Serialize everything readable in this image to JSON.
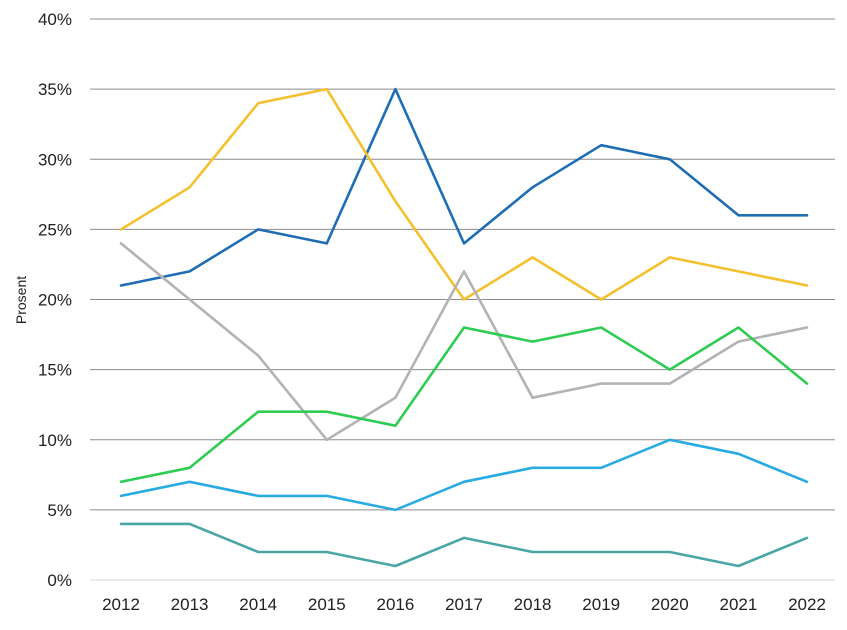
{
  "chart_data": {
    "type": "line",
    "title": "",
    "xlabel": "",
    "ylabel": "Prosent",
    "x": [
      "2012",
      "2013",
      "2014",
      "2015",
      "2016",
      "2017",
      "2018",
      "2019",
      "2020",
      "2021",
      "2022"
    ],
    "ylim": [
      0,
      40
    ],
    "yticks": [
      0,
      5,
      10,
      15,
      20,
      25,
      30,
      35,
      40
    ],
    "ytick_labels": [
      "0%",
      "5%",
      "10%",
      "15%",
      "20%",
      "25%",
      "30%",
      "35%",
      "40%"
    ],
    "grid": true,
    "legend": "none",
    "series": [
      {
        "color": "#1f6db3",
        "values": [
          21,
          22,
          25,
          24,
          35,
          24,
          28,
          31,
          30,
          26,
          26
        ]
      },
      {
        "color": "#f5c02f",
        "values": [
          25,
          28,
          34,
          35,
          27,
          20,
          23,
          20,
          23,
          22,
          21
        ]
      },
      {
        "color": "#b3b3b3",
        "values": [
          24,
          20,
          16,
          10,
          13,
          22,
          13,
          14,
          14,
          17,
          18
        ]
      },
      {
        "color": "#2ecc52",
        "values": [
          7,
          8,
          12,
          12,
          11,
          18,
          17,
          18,
          15,
          18,
          14
        ]
      },
      {
        "color": "#29abe2",
        "values": [
          6,
          7,
          6,
          6,
          5,
          7,
          8,
          8,
          10,
          9,
          7
        ]
      },
      {
        "color": "#4aa6a6",
        "values": [
          4,
          4,
          2,
          2,
          1,
          3,
          2,
          2,
          2,
          1,
          3
        ]
      }
    ]
  }
}
